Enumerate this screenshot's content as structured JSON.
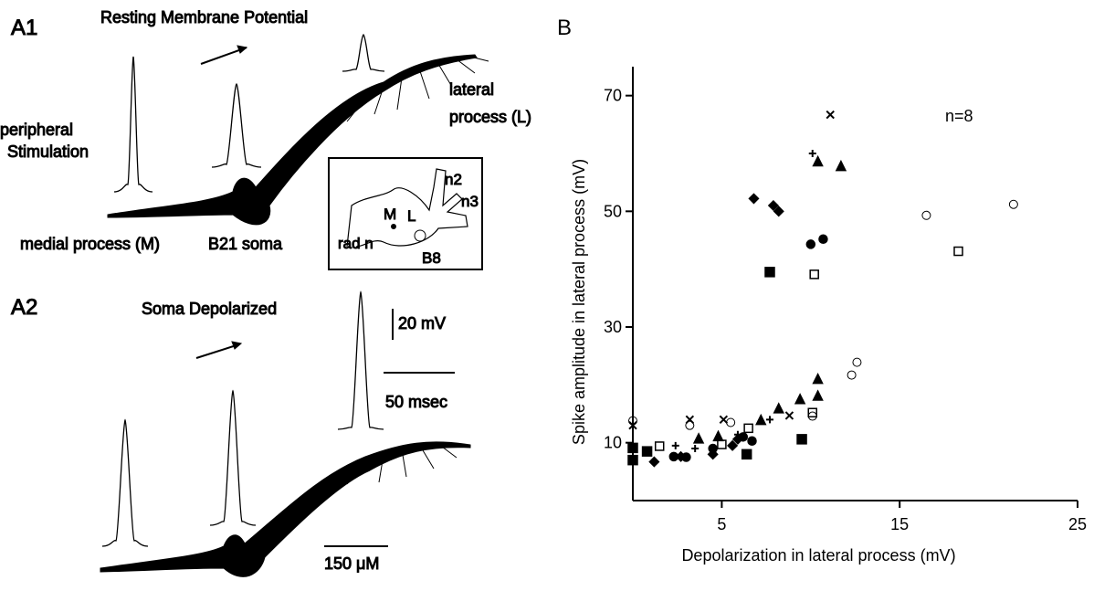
{
  "panel_a": {
    "a1_label": "A1",
    "a1_title": "Resting Membrane Potential",
    "peripheral": "peripheral",
    "stimulation": "Stimulation",
    "lateral": "lateral",
    "lateral_process": "process (L)",
    "medial_process": "medial process (M)",
    "soma": "B21 soma",
    "inset": {
      "m": "M",
      "l": "L",
      "n2": "n2",
      "n3": "n3",
      "rad_n": "rad n",
      "b8": "B8"
    },
    "a2_label": "A2",
    "a2_title": "Soma Depolarized",
    "scale_mv": "20 mV",
    "scale_ms": "50 msec",
    "scale_um": "150 μM"
  },
  "chart_data": {
    "type": "scatter",
    "panel_label": "B",
    "annotation": "n=8",
    "x_label": "Depolarization in lateral process (mV)",
    "y_label": "Spike amplitude in lateral process (mV)",
    "xlim": [
      0,
      25
    ],
    "ylim": [
      0,
      75
    ],
    "xticks": [
      5,
      15,
      25
    ],
    "yticks": [
      10,
      30,
      50,
      70
    ],
    "series": [
      {
        "marker": "filled-square",
        "color": "#000",
        "x": [
          0,
          0,
          0.8,
          6.4,
          7.7,
          9.5
        ],
        "values": [
          9.1,
          7,
          8.5,
          8,
          39.5,
          10.6
        ]
      },
      {
        "marker": "open-square",
        "color": "#000",
        "x": [
          1.5,
          5,
          6.5,
          10.1,
          10.2,
          18.3
        ],
        "values": [
          9.4,
          9.7,
          12.5,
          15.2,
          39.1,
          43.1
        ]
      },
      {
        "marker": "filled-circle",
        "color": "#000",
        "x": [
          2.3,
          3,
          4.5,
          6.2,
          6.7,
          10,
          10.7
        ],
        "values": [
          7.6,
          7.5,
          9,
          11,
          10.3,
          44.3,
          45.2
        ]
      },
      {
        "marker": "open-circle",
        "color": "#000",
        "x": [
          0,
          3.2,
          5.5,
          10.1,
          12.3,
          12.6,
          16.5,
          21.4
        ],
        "values": [
          13.8,
          13,
          13.5,
          14.6,
          21.7,
          23.9,
          49.3,
          51.2
        ]
      },
      {
        "marker": "filled-triangle",
        "color": "#000",
        "x": [
          3.7,
          4.8,
          7.2,
          8.2,
          9.4,
          10.4,
          10.4,
          10.4,
          11.7
        ],
        "values": [
          10.6,
          11,
          13.8,
          15.8,
          17.4,
          18,
          20.9,
          58.5,
          57.7
        ]
      },
      {
        "marker": "diamond",
        "color": "#000",
        "x": [
          1.2,
          2.7,
          4.5,
          5.6,
          5.9,
          6.8,
          7.9,
          8.2
        ],
        "values": [
          6.7,
          7.6,
          8,
          9.5,
          10.6,
          52.2,
          51,
          50
        ]
      },
      {
        "marker": "x",
        "color": "#000",
        "x": [
          0,
          3.2,
          5.1,
          8.8,
          11.1
        ],
        "values": [
          13,
          14,
          14,
          14.7,
          66.7
        ]
      },
      {
        "marker": "plus",
        "color": "#000",
        "x": [
          2.4,
          3.5,
          5.9,
          7.7,
          10.1
        ],
        "values": [
          9.5,
          9,
          11.4,
          14,
          60
        ]
      }
    ]
  }
}
